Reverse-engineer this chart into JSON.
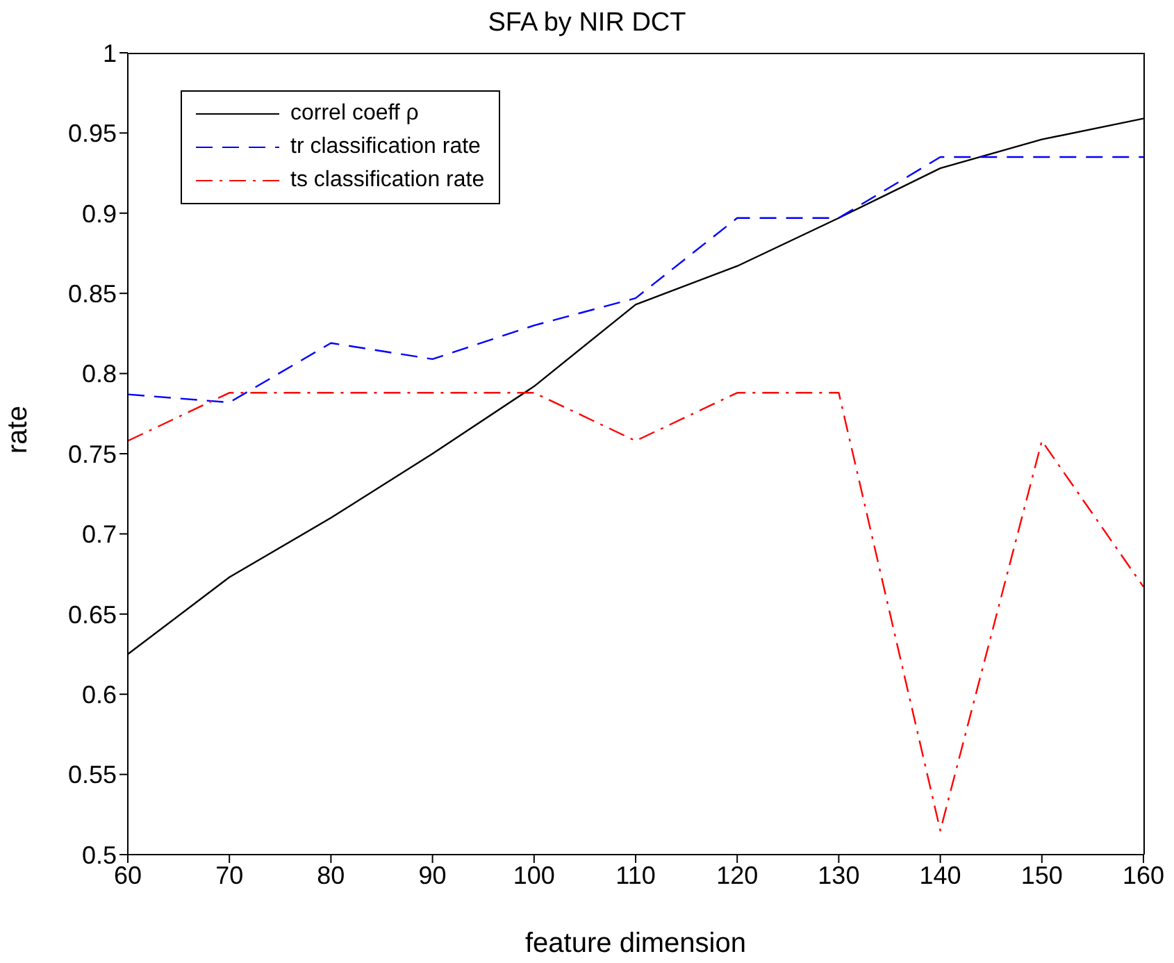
{
  "chart_data": {
    "type": "line",
    "title": "SFA by NIR DCT",
    "xlabel": "feature dimension",
    "ylabel": "rate",
    "x": [
      60,
      70,
      80,
      90,
      100,
      110,
      120,
      130,
      140,
      150,
      160
    ],
    "series": [
      {
        "name": "correl coeff ρ",
        "color": "#000000",
        "line_style": "solid",
        "values": [
          0.625,
          0.673,
          0.71,
          0.75,
          0.792,
          0.843,
          0.867,
          0.897,
          0.928,
          0.946,
          0.959
        ]
      },
      {
        "name": "tr classification rate",
        "color": "#0000ff",
        "line_style": "dashed",
        "values": [
          0.787,
          0.782,
          0.819,
          0.809,
          0.83,
          0.847,
          0.897,
          0.897,
          0.935,
          0.935,
          0.935
        ]
      },
      {
        "name": "ts classification rate",
        "color": "#ff0000",
        "line_style": "dashdot",
        "values": [
          0.758,
          0.788,
          0.788,
          0.788,
          0.788,
          0.758,
          0.788,
          0.788,
          0.515,
          0.758,
          0.667
        ]
      }
    ],
    "xlim": [
      60,
      160
    ],
    "xticks": [
      60,
      70,
      80,
      90,
      100,
      110,
      120,
      130,
      140,
      150,
      160
    ],
    "ylim": [
      0.5,
      1
    ],
    "yticks": [
      0.5,
      0.55,
      0.6,
      0.65,
      0.7,
      0.75,
      0.8,
      0.85,
      0.9,
      0.95,
      1
    ],
    "grid": false,
    "legend": "top left",
    "marker": "none"
  }
}
